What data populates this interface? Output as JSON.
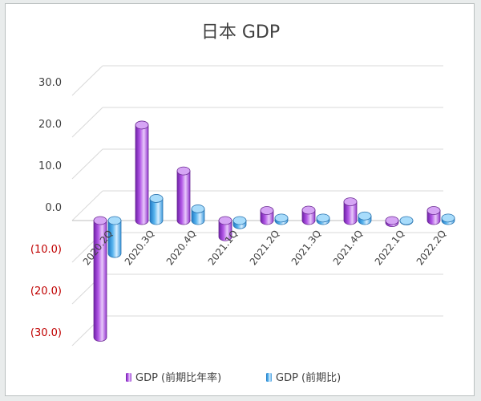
{
  "chart_data": {
    "type": "bar",
    "title": "日本 GDP",
    "categories": [
      "2020.2Q",
      "2020.3Q",
      "2020.4Q",
      "2021.1Q",
      "2021.2Q",
      "2021.3Q",
      "2021.4Q",
      "2022.1Q",
      "2022.2Q"
    ],
    "series": [
      {
        "name": "GDP (前期比年率)",
        "values": [
          -28.0,
          22.9,
          11.9,
          -3.9,
          2.4,
          2.5,
          4.5,
          -0.5,
          2.4
        ],
        "color": "#b257e6"
      },
      {
        "name": "GDP (前期比)",
        "values": [
          -7.9,
          5.3,
          2.8,
          -1.0,
          0.6,
          0.6,
          1.1,
          -0.1,
          0.6
        ],
        "color": "#58b4ee"
      }
    ],
    "y_ticks": [
      "30.0",
      "20.0",
      "10.0",
      "0.0",
      "(10.0)",
      "(20.0)",
      "(30.0)"
    ],
    "y_tick_values": [
      30,
      20,
      10,
      0,
      -10,
      -20,
      -30
    ],
    "ylim": [
      -30,
      30
    ],
    "negative_tick_color": "#c00000",
    "grid": true,
    "legend_position": "bottom"
  }
}
